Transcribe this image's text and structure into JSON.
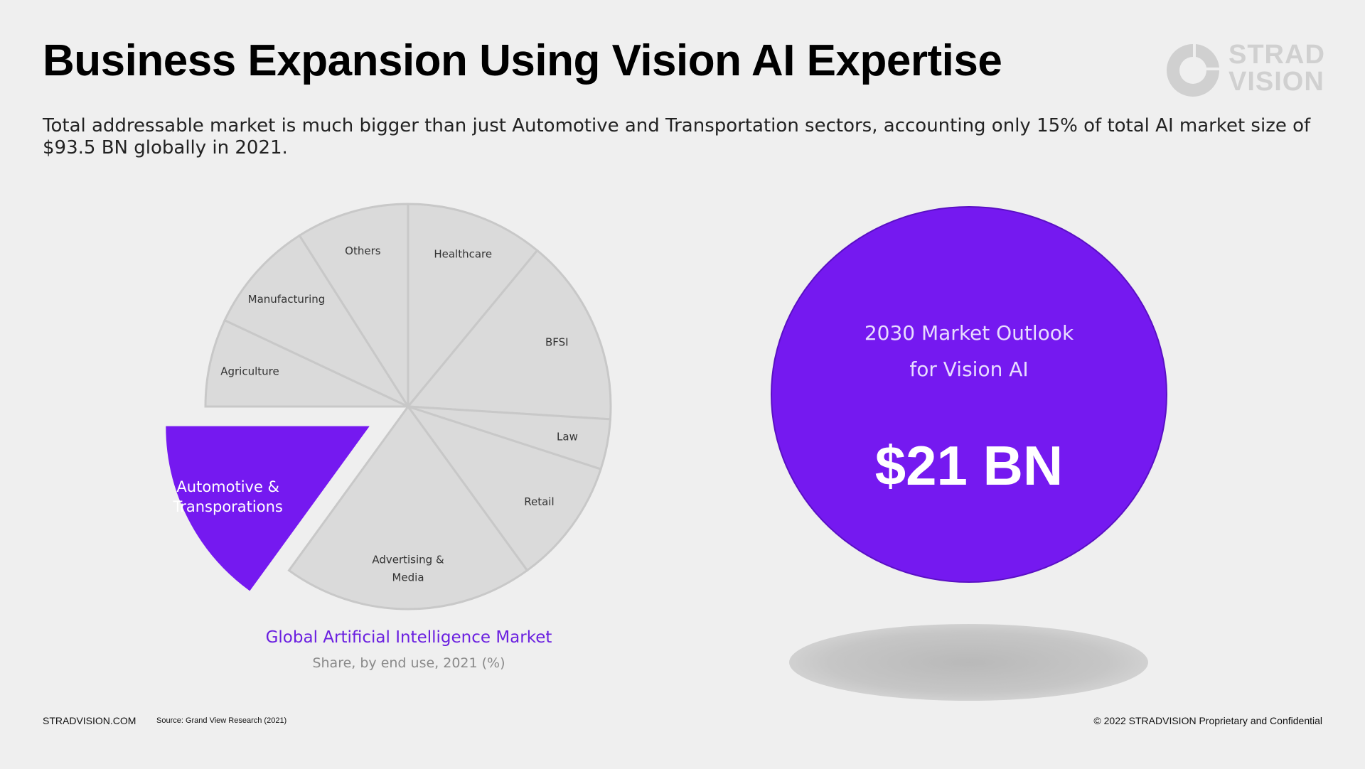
{
  "header": {
    "title": "Business Expansion Using Vision AI Expertise",
    "subtitle": "Total addressable market is much bigger than just Automotive and Transportation sectors, accounting only 15% of total AI market size of $93.5 BN globally in 2021."
  },
  "logo": {
    "line1": "STRAD",
    "line2": "VISION",
    "color": "#d0d0d0"
  },
  "chart_data": {
    "type": "pie",
    "title": "Global Artificial Intelligence Market",
    "subtitle": "Share, by end use, 2021 (%)",
    "unit": "%",
    "highlight": "Automotive & Transporations",
    "slices": [
      {
        "label": "Healthcare",
        "value": 11
      },
      {
        "label": "BFSI",
        "value": 15
      },
      {
        "label": "Law",
        "value": 4
      },
      {
        "label": "Retail",
        "value": 10
      },
      {
        "label": "Advertising & Media",
        "value": 20
      },
      {
        "label": "Automotive & Transporations",
        "value": 15
      },
      {
        "label": "Agriculture",
        "value": 7
      },
      {
        "label": "Manufacturing",
        "value": 9
      },
      {
        "label": "Others",
        "value": 9
      }
    ],
    "colors": {
      "default": "#dadada",
      "border": "#c8c8c8",
      "highlight": "#7519f0"
    }
  },
  "outlook": {
    "label_line1": "2030 Market Outlook",
    "label_line2": "for Vision AI",
    "value": "$21 BN",
    "color": "#7519f0"
  },
  "footer": {
    "website": "STRADVISION.COM",
    "source": "Source: Grand View Research (2021)",
    "copyright": "© 2022 STRADVISION Proprietary and Confidential"
  }
}
